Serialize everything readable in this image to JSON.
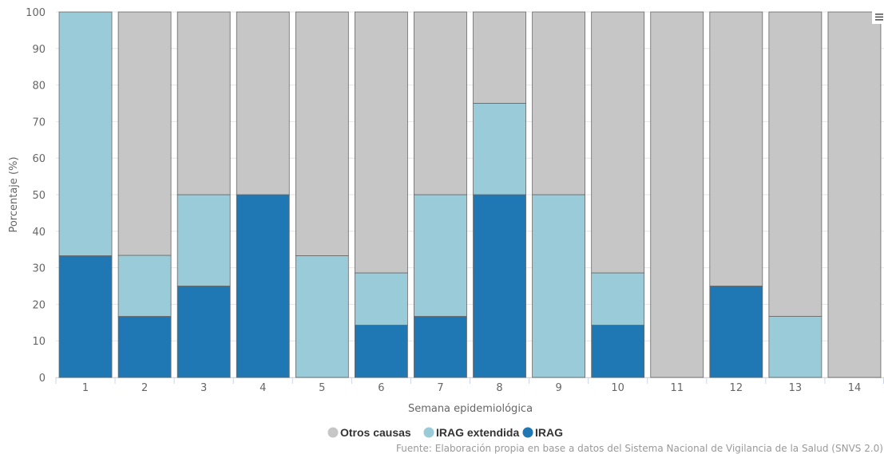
{
  "chart_data": {
    "type": "bar",
    "stacked": true,
    "stacking": "percent",
    "categories": [
      "1",
      "2",
      "3",
      "4",
      "5",
      "6",
      "7",
      "8",
      "9",
      "10",
      "11",
      "12",
      "13",
      "14"
    ],
    "series": [
      {
        "name": "IRAG",
        "color": "#1f77b4",
        "values": [
          33.3,
          16.7,
          25,
          50,
          0,
          14.3,
          16.7,
          50,
          0,
          14.3,
          0,
          25,
          0,
          0
        ]
      },
      {
        "name": "IRAG extendida",
        "color": "#9acbd9",
        "values": [
          66.7,
          16.7,
          25,
          0,
          33.3,
          14.3,
          33.3,
          25,
          50,
          14.3,
          0,
          0,
          16.7,
          0
        ]
      },
      {
        "name": "Otros causas",
        "color": "#c6c6c6",
        "values": [
          0,
          66.6,
          50,
          50,
          66.7,
          71.4,
          50,
          25,
          50,
          71.4,
          100,
          75,
          83.3,
          100
        ]
      }
    ],
    "legend_order": [
      "Otros causas",
      "IRAG extendida",
      "IRAG"
    ],
    "xlabel": "Semana epidemiológica",
    "ylabel": "Porcentaje (%)",
    "ylim": [
      0,
      100
    ],
    "yticks": [
      0,
      10,
      20,
      30,
      40,
      50,
      60,
      70,
      80,
      90,
      100
    ],
    "grid": true,
    "legend_position": "bottom-center",
    "credits": "Fuente: Elaboración propia en base a datos del Sistema Nacional de Vigilancia de la Salud (SNVS 2.0)",
    "menu_icon": "hamburger-menu-icon"
  }
}
